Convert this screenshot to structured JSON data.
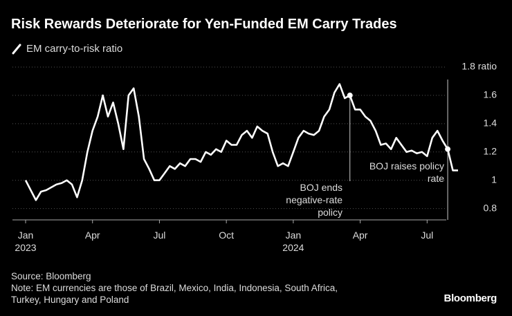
{
  "chart_data": {
    "type": "line",
    "title": "Risk Rewards Deteriorate for Yen-Funded EM Carry Trades",
    "categories": [
      "Jan\n2023",
      null,
      null,
      null,
      null,
      null,
      null,
      null,
      null,
      null,
      null,
      null,
      null,
      "Apr",
      null,
      null,
      null,
      null,
      null,
      null,
      null,
      null,
      null,
      null,
      null,
      null,
      "Jul",
      null,
      null,
      null,
      null,
      null,
      null,
      null,
      null,
      null,
      null,
      null,
      null,
      "Oct",
      null,
      null,
      null,
      null,
      null,
      null,
      null,
      null,
      null,
      null,
      null,
      null,
      "Jan\n2024",
      null,
      null,
      null,
      null,
      null,
      null,
      null,
      null,
      null,
      null,
      null,
      null,
      "Apr",
      null,
      null,
      null,
      null,
      null,
      null,
      null,
      null,
      null,
      null,
      null,
      null,
      "Jul",
      null,
      null,
      null,
      null,
      null,
      null
    ],
    "series": [
      {
        "name": "EM carry-to-risk ratio",
        "color": "#ffffff",
        "values": [
          1.0,
          0.93,
          0.86,
          0.92,
          0.93,
          0.95,
          0.97,
          0.98,
          1.0,
          0.97,
          0.88,
          1.0,
          1.2,
          1.35,
          1.45,
          1.6,
          1.45,
          1.55,
          1.4,
          1.22,
          1.6,
          1.65,
          1.45,
          1.15,
          1.08,
          1.0,
          1.0,
          1.05,
          1.1,
          1.08,
          1.12,
          1.1,
          1.15,
          1.15,
          1.13,
          1.2,
          1.18,
          1.22,
          1.2,
          1.28,
          1.25,
          1.25,
          1.32,
          1.35,
          1.3,
          1.38,
          1.35,
          1.33,
          1.2,
          1.1,
          1.12,
          1.1,
          1.2,
          1.3,
          1.35,
          1.33,
          1.32,
          1.35,
          1.45,
          1.5,
          1.62,
          1.68,
          1.58,
          1.6,
          1.5,
          1.5,
          1.45,
          1.42,
          1.35,
          1.25,
          1.26,
          1.22,
          1.3,
          1.25,
          1.2,
          1.21,
          1.19,
          1.2,
          1.17,
          1.3,
          1.35,
          1.28,
          1.22,
          1.07,
          1.07
        ]
      }
    ],
    "ylim": [
      0.72,
      1.8
    ],
    "yticks": [
      0.8,
      1.0,
      1.2,
      1.4,
      1.6,
      {
        "value": 1.8,
        "label": "1.8 ratio"
      }
    ],
    "grid": true,
    "annotations": [
      "BOJ ends\nnegative-rate\npolicy",
      "BOJ raises policy\nrate"
    ]
  },
  "source": "Source: Bloomberg",
  "note": "Note: EM currencies are those of Brazil, Mexico, India, Indonesia, South Africa,\nTurkey, Hungary and Poland",
  "logo": "Bloomberg"
}
